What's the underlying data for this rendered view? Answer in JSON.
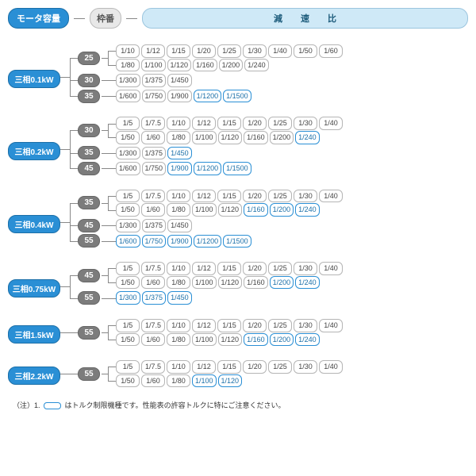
{
  "header": {
    "motor_label": "モータ容量",
    "frame_label": "枠番",
    "ratio_label": "減 速 比"
  },
  "colors": {
    "accent": "#2a8fd5",
    "accent_border": "#1b6fa8",
    "frame_bg": "#7c7c7c",
    "cell_border": "#b5b5b5",
    "header_ratio_bg": "#cfe9f7"
  },
  "groups": [
    {
      "motor": "三相0.1kW",
      "frames": [
        {
          "frame": "25",
          "lines": [
            [
              {
                "v": "1/10"
              },
              {
                "v": "1/12"
              },
              {
                "v": "1/15"
              },
              {
                "v": "1/20"
              },
              {
                "v": "1/25"
              },
              {
                "v": "1/30"
              },
              {
                "v": "1/40"
              },
              {
                "v": "1/50"
              },
              {
                "v": "1/60"
              }
            ],
            [
              {
                "v": "1/80"
              },
              {
                "v": "1/100"
              },
              {
                "v": "1/120"
              },
              {
                "v": "1/160"
              },
              {
                "v": "1/200"
              },
              {
                "v": "1/240"
              }
            ]
          ]
        },
        {
          "frame": "30",
          "lines": [
            [
              {
                "v": "1/300"
              },
              {
                "v": "1/375"
              },
              {
                "v": "1/450"
              }
            ]
          ]
        },
        {
          "frame": "35",
          "lines": [
            [
              {
                "v": "1/600"
              },
              {
                "v": "1/750"
              },
              {
                "v": "1/900"
              },
              {
                "v": "1/1200",
                "hl": true
              },
              {
                "v": "1/1500",
                "hl": true
              }
            ]
          ]
        }
      ]
    },
    {
      "motor": "三相0.2kW",
      "frames": [
        {
          "frame": "30",
          "lines": [
            [
              {
                "v": "1/5"
              },
              {
                "v": "1/7.5"
              },
              {
                "v": "1/10"
              },
              {
                "v": "1/12"
              },
              {
                "v": "1/15"
              },
              {
                "v": "1/20"
              },
              {
                "v": "1/25"
              },
              {
                "v": "1/30"
              },
              {
                "v": "1/40"
              }
            ],
            [
              {
                "v": "1/50"
              },
              {
                "v": "1/60"
              },
              {
                "v": "1/80"
              },
              {
                "v": "1/100"
              },
              {
                "v": "1/120"
              },
              {
                "v": "1/160"
              },
              {
                "v": "1/200"
              },
              {
                "v": "1/240",
                "hl": true
              }
            ]
          ]
        },
        {
          "frame": "35",
          "lines": [
            [
              {
                "v": "1/300"
              },
              {
                "v": "1/375"
              },
              {
                "v": "1/450",
                "hl": true
              }
            ]
          ]
        },
        {
          "frame": "45",
          "lines": [
            [
              {
                "v": "1/600"
              },
              {
                "v": "1/750"
              },
              {
                "v": "1/900",
                "hl": true
              },
              {
                "v": "1/1200",
                "hl": true
              },
              {
                "v": "1/1500",
                "hl": true
              }
            ]
          ]
        }
      ]
    },
    {
      "motor": "三相0.4kW",
      "frames": [
        {
          "frame": "35",
          "lines": [
            [
              {
                "v": "1/5"
              },
              {
                "v": "1/7.5"
              },
              {
                "v": "1/10"
              },
              {
                "v": "1/12"
              },
              {
                "v": "1/15"
              },
              {
                "v": "1/20"
              },
              {
                "v": "1/25"
              },
              {
                "v": "1/30"
              },
              {
                "v": "1/40"
              }
            ],
            [
              {
                "v": "1/50"
              },
              {
                "v": "1/60"
              },
              {
                "v": "1/80"
              },
              {
                "v": "1/100"
              },
              {
                "v": "1/120"
              },
              {
                "v": "1/160",
                "hl": true
              },
              {
                "v": "1/200",
                "hl": true
              },
              {
                "v": "1/240",
                "hl": true
              }
            ]
          ]
        },
        {
          "frame": "45",
          "lines": [
            [
              {
                "v": "1/300"
              },
              {
                "v": "1/375"
              },
              {
                "v": "1/450"
              }
            ]
          ]
        },
        {
          "frame": "55",
          "lines": [
            [
              {
                "v": "1/600",
                "hl": true
              },
              {
                "v": "1/750",
                "hl": true
              },
              {
                "v": "1/900",
                "hl": true
              },
              {
                "v": "1/1200",
                "hl": true
              },
              {
                "v": "1/1500",
                "hl": true
              }
            ]
          ]
        }
      ]
    },
    {
      "motor": "三相0.75kW",
      "frames": [
        {
          "frame": "45",
          "lines": [
            [
              {
                "v": "1/5"
              },
              {
                "v": "1/7.5"
              },
              {
                "v": "1/10"
              },
              {
                "v": "1/12"
              },
              {
                "v": "1/15"
              },
              {
                "v": "1/20"
              },
              {
                "v": "1/25"
              },
              {
                "v": "1/30"
              },
              {
                "v": "1/40"
              }
            ],
            [
              {
                "v": "1/50"
              },
              {
                "v": "1/60"
              },
              {
                "v": "1/80"
              },
              {
                "v": "1/100"
              },
              {
                "v": "1/120"
              },
              {
                "v": "1/160"
              },
              {
                "v": "1/200",
                "hl": true
              },
              {
                "v": "1/240",
                "hl": true
              }
            ]
          ]
        },
        {
          "frame": "55",
          "lines": [
            [
              {
                "v": "1/300",
                "hl": true
              },
              {
                "v": "1/375",
                "hl": true
              },
              {
                "v": "1/450",
                "hl": true
              }
            ]
          ]
        }
      ]
    },
    {
      "motor": "三相1.5kW",
      "frames": [
        {
          "frame": "55",
          "lines": [
            [
              {
                "v": "1/5"
              },
              {
                "v": "1/7.5"
              },
              {
                "v": "1/10"
              },
              {
                "v": "1/12"
              },
              {
                "v": "1/15"
              },
              {
                "v": "1/20"
              },
              {
                "v": "1/25"
              },
              {
                "v": "1/30"
              },
              {
                "v": "1/40"
              }
            ],
            [
              {
                "v": "1/50"
              },
              {
                "v": "1/60"
              },
              {
                "v": "1/80"
              },
              {
                "v": "1/100"
              },
              {
                "v": "1/120"
              },
              {
                "v": "1/160",
                "hl": true
              },
              {
                "v": "1/200",
                "hl": true
              },
              {
                "v": "1/240",
                "hl": true
              }
            ]
          ]
        }
      ]
    },
    {
      "motor": "三相2.2kW",
      "frames": [
        {
          "frame": "55",
          "lines": [
            [
              {
                "v": "1/5"
              },
              {
                "v": "1/7.5"
              },
              {
                "v": "1/10"
              },
              {
                "v": "1/12"
              },
              {
                "v": "1/15"
              },
              {
                "v": "1/20"
              },
              {
                "v": "1/25"
              },
              {
                "v": "1/30"
              },
              {
                "v": "1/40"
              }
            ],
            [
              {
                "v": "1/50"
              },
              {
                "v": "1/60"
              },
              {
                "v": "1/80"
              },
              {
                "v": "1/100",
                "hl": true
              },
              {
                "v": "1/120",
                "hl": true
              }
            ]
          ]
        }
      ]
    }
  ],
  "note": {
    "prefix": "（注）1.",
    "suffix": "はトルク制限機種です。性能表の許容トルクに特にご注意ください。"
  }
}
